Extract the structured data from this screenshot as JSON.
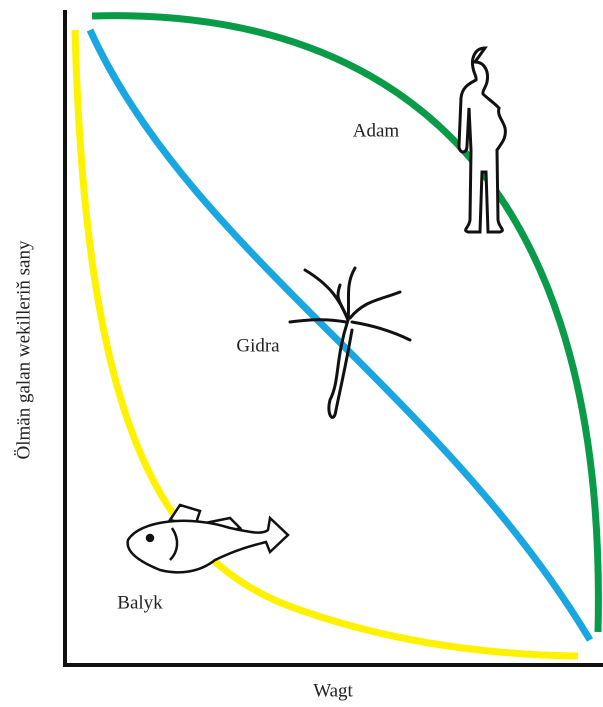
{
  "axes": {
    "x_label": "Wagt",
    "y_label": "Ölmän galan wekilleriň sany"
  },
  "curves": [
    {
      "label": "Adam",
      "color": "#0a9b48"
    },
    {
      "label": "Gidra",
      "color": "#1aa7e1"
    },
    {
      "label": "Balyk",
      "color": "#fff200"
    }
  ]
}
